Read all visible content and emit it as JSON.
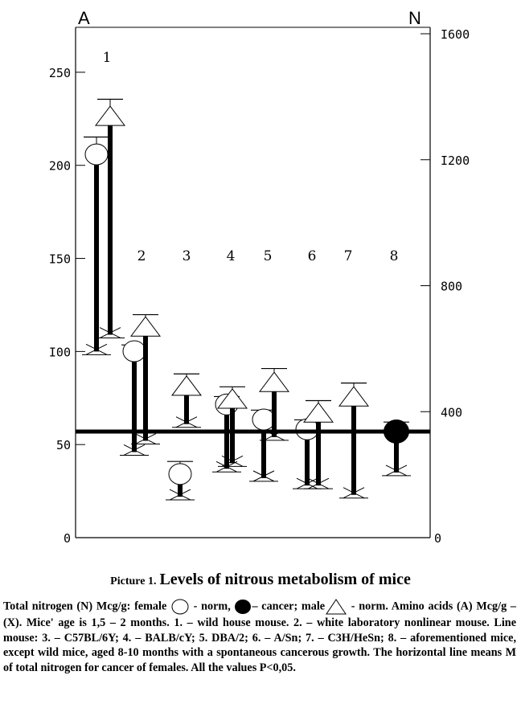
{
  "chart_data": {
    "type": "scatter",
    "title_prefix": "Picture 1.",
    "title": "Levels of nitrous metabolism of mice",
    "left_axis": {
      "label": "A",
      "ticks": [
        0,
        50,
        100,
        150,
        200,
        250
      ],
      "tick_labels": [
        "0",
        "50",
        "I00",
        "I50",
        "200",
        "250"
      ],
      "range": [
        0,
        275
      ]
    },
    "right_axis": {
      "label": "N",
      "ticks": [
        0,
        400,
        800,
        1200,
        1600
      ],
      "tick_labels": [
        "0",
        "400",
        "800",
        "I200",
        "I600"
      ],
      "range": [
        0,
        1600
      ]
    },
    "reference_line_N": 337,
    "groups": [
      {
        "label": "1",
        "series": [
          {
            "marker": "circle-open",
            "N": 1217,
            "N_err": 55,
            "A": 100
          },
          {
            "marker": "triangle",
            "N": 1337,
            "N_err": 55,
            "A": 109
          }
        ]
      },
      {
        "label": "2",
        "series": [
          {
            "marker": "circle-open",
            "N": 592,
            "N_err": 20,
            "A": 46
          },
          {
            "marker": "triangle",
            "N": 668,
            "N_err": 40,
            "A": 52
          }
        ]
      },
      {
        "label": "3",
        "series": [
          {
            "marker": "circle-open",
            "N": 202,
            "N_err": 40,
            "A": 22
          },
          {
            "marker": "triangle",
            "N": 480,
            "N_err": 40,
            "A": 61
          }
        ]
      },
      {
        "label": "4",
        "series": [
          {
            "marker": "circle-open",
            "N": 423,
            "N_err": 25,
            "A": 37
          },
          {
            "marker": "triangle",
            "N": 439,
            "N_err": 40,
            "A": 40
          }
        ]
      },
      {
        "label": "5",
        "series": [
          {
            "marker": "circle-open",
            "N": 375,
            "N_err": 30,
            "A": 32
          },
          {
            "marker": "triangle",
            "N": 492,
            "N_err": 45,
            "A": 54
          }
        ]
      },
      {
        "label": "6",
        "series": [
          {
            "marker": "circle-open",
            "N": 344,
            "N_err": 30,
            "A": 28
          },
          {
            "marker": "triangle",
            "N": 395,
            "N_err": 40,
            "A": 28
          }
        ]
      },
      {
        "label": "7",
        "series": [
          {
            "marker": "triangle",
            "N": 446,
            "N_err": 45,
            "A": 23
          }
        ]
      },
      {
        "label": "8",
        "series": [
          {
            "marker": "circle-filled",
            "N": 337,
            "N_err": 30,
            "A": 35
          }
        ]
      }
    ]
  },
  "caption": {
    "part1": "Total nitrogen (N) Mcg/g: female ",
    "part2": " - norm, ",
    "part3": "– cancer; male",
    "part4": " - norm. Amino acids (A) Mcg/g – (X). Mice' age is 1,5 – 2 months. 1. – wild house mouse. 2. – white laboratory nonlinear mouse. Line mouse: 3. – C57BL/6Y; 4. – BALB/cY; 5. DBA/2; 6. – A/Sn; 7. – C3H/HeSn; 8. – aforementioned mice, except wild mice, aged 8-10 months with a spontaneous cancerous growth. The horizontal line means M of total nitrogen for cancer of females. All the values P<0,05."
  }
}
